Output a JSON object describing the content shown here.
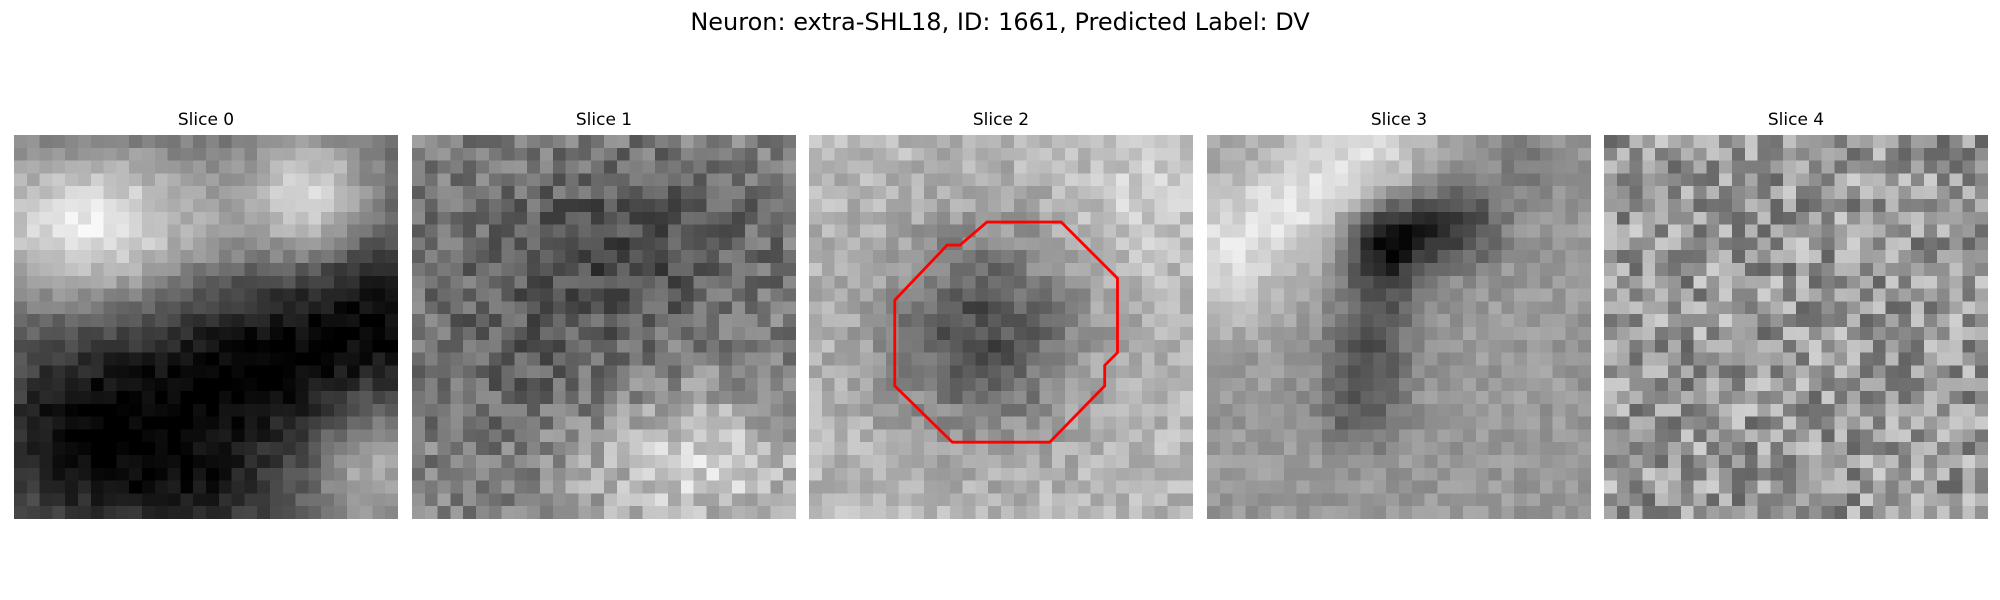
{
  "figure": {
    "title": "Neuron: extra-SHL18, ID: 1661, Predicted Label: DV"
  },
  "panels": [
    {
      "title": "Slice 0"
    },
    {
      "title": "Slice 1"
    },
    {
      "title": "Slice 2"
    },
    {
      "title": "Slice 3"
    },
    {
      "title": "Slice 4"
    }
  ],
  "colors": {
    "contour": "#ff0000",
    "colormap": "gray"
  }
}
